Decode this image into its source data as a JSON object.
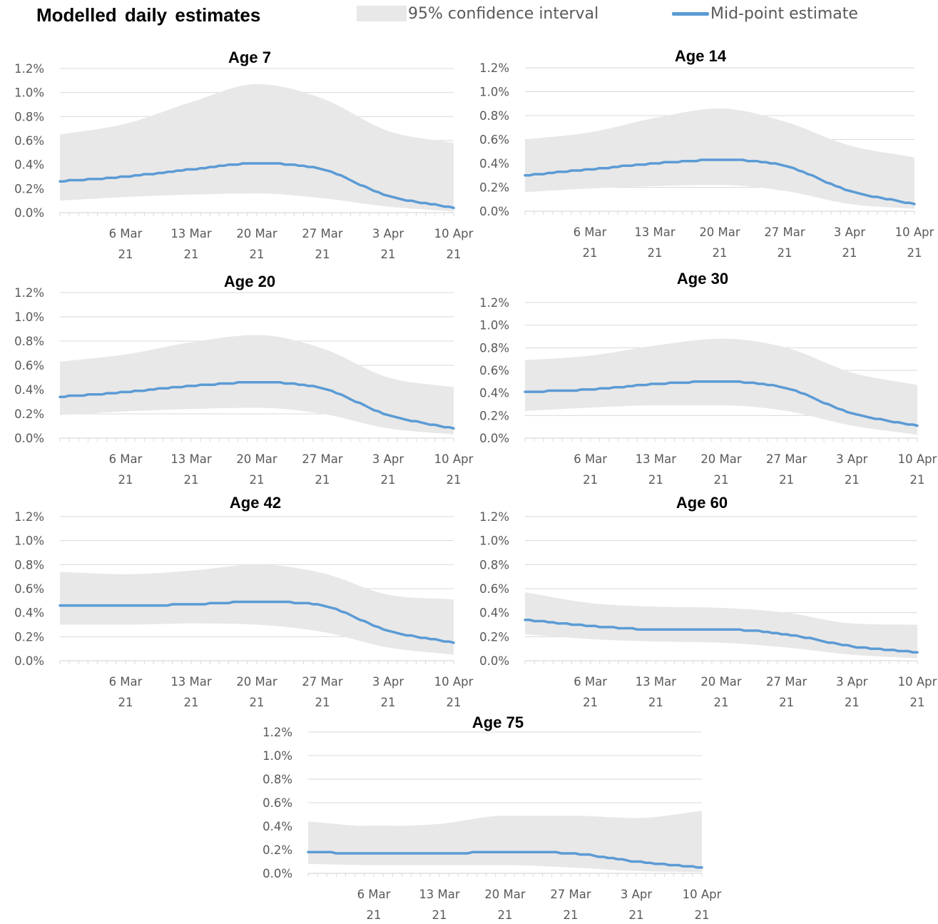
{
  "page": {
    "title": "Modelled daily estimates",
    "legend": {
      "band_label": "95% confidence interval",
      "line_label": "Mid-point estimate"
    }
  },
  "colors": {
    "band": "#e8e8e8",
    "line": "#5b9bd5",
    "grid": "#d9d9d9",
    "axis_text": "#595959",
    "title_text": "#000000"
  },
  "chart_data": [
    {
      "type": "area",
      "title": "Age 7",
      "x_unit": "day (0 = 28 Feb 2021)",
      "x": [
        0,
        7,
        14,
        21,
        28,
        35,
        42
      ],
      "x_tick_labels": [
        "6 Mar 21",
        "13 Mar 21",
        "20 Mar 21",
        "27 Mar 21",
        "3 Apr 21",
        "10 Apr 21"
      ],
      "y_tick_labels": [
        "0.0%",
        "0.2%",
        "0.4%",
        "0.6%",
        "0.8%",
        "1.0%",
        "1.2%"
      ],
      "ylim": [
        0,
        1.2
      ],
      "grid": true,
      "series": [
        {
          "name": "Mid-point estimate",
          "values": [
            0.26,
            0.3,
            0.36,
            0.41,
            0.36,
            0.14,
            0.04
          ]
        },
        {
          "name": "95% confidence interval upper",
          "values": [
            0.65,
            0.74,
            0.92,
            1.07,
            0.95,
            0.68,
            0.58
          ]
        },
        {
          "name": "95% confidence interval lower",
          "values": [
            0.1,
            0.13,
            0.15,
            0.16,
            0.12,
            0.05,
            0.01
          ]
        }
      ]
    },
    {
      "type": "area",
      "title": "Age 14",
      "x_unit": "day (0 = 28 Feb 2021)",
      "x": [
        0,
        7,
        14,
        21,
        28,
        35,
        42
      ],
      "x_tick_labels": [
        "6 Mar 21",
        "13 Mar 21",
        "20 Mar 21",
        "27 Mar 21",
        "3 Apr 21",
        "10 Apr 21"
      ],
      "y_tick_labels": [
        "0.0%",
        "0.2%",
        "0.4%",
        "0.6%",
        "0.8%",
        "1.0%",
        "1.2%"
      ],
      "ylim": [
        0,
        1.2
      ],
      "grid": true,
      "series": [
        {
          "name": "Mid-point estimate",
          "values": [
            0.3,
            0.35,
            0.4,
            0.43,
            0.38,
            0.17,
            0.06
          ]
        },
        {
          "name": "95% confidence interval upper",
          "values": [
            0.6,
            0.66,
            0.78,
            0.86,
            0.75,
            0.55,
            0.45
          ]
        },
        {
          "name": "95% confidence interval lower",
          "values": [
            0.16,
            0.19,
            0.21,
            0.22,
            0.17,
            0.06,
            0.02
          ]
        }
      ]
    },
    {
      "type": "area",
      "title": "Age 20",
      "x_unit": "day (0 = 28 Feb 2021)",
      "x": [
        0,
        7,
        14,
        21,
        28,
        35,
        42
      ],
      "x_tick_labels": [
        "6 Mar 21",
        "13 Mar 21",
        "20 Mar 21",
        "27 Mar 21",
        "3 Apr 21",
        "10 Apr 21"
      ],
      "y_tick_labels": [
        "0.0%",
        "0.2%",
        "0.4%",
        "0.6%",
        "0.8%",
        "1.0%",
        "1.2%"
      ],
      "ylim": [
        0,
        1.2
      ],
      "grid": true,
      "series": [
        {
          "name": "Mid-point estimate",
          "values": [
            0.34,
            0.38,
            0.43,
            0.46,
            0.41,
            0.19,
            0.08
          ]
        },
        {
          "name": "95% confidence interval upper",
          "values": [
            0.63,
            0.69,
            0.79,
            0.85,
            0.74,
            0.5,
            0.42
          ]
        },
        {
          "name": "95% confidence interval lower",
          "values": [
            0.19,
            0.22,
            0.24,
            0.25,
            0.2,
            0.08,
            0.03
          ]
        }
      ]
    },
    {
      "type": "area",
      "title": "Age 30",
      "x_unit": "day (0 = 28 Feb 2021)",
      "x": [
        0,
        7,
        14,
        21,
        28,
        35,
        42
      ],
      "x_tick_labels": [
        "6 Mar 21",
        "13 Mar 21",
        "20 Mar 21",
        "27 Mar 21",
        "3 Apr 21",
        "10 Apr 21"
      ],
      "y_tick_labels": [
        "0.0%",
        "0.2%",
        "0.4%",
        "0.6%",
        "0.8%",
        "1.0%",
        "1.2%"
      ],
      "ylim": [
        0,
        1.2
      ],
      "grid": true,
      "series": [
        {
          "name": "Mid-point estimate",
          "values": [
            0.41,
            0.43,
            0.48,
            0.5,
            0.44,
            0.22,
            0.11
          ]
        },
        {
          "name": "95% confidence interval upper",
          "values": [
            0.69,
            0.73,
            0.82,
            0.88,
            0.8,
            0.58,
            0.47
          ]
        },
        {
          "name": "95% confidence interval lower",
          "values": [
            0.24,
            0.27,
            0.29,
            0.29,
            0.24,
            0.11,
            0.03
          ]
        }
      ]
    },
    {
      "type": "area",
      "title": "Age 42",
      "x_unit": "day (0 = 28 Feb 2021)",
      "x": [
        0,
        7,
        14,
        21,
        28,
        35,
        42
      ],
      "x_tick_labels": [
        "6 Mar 21",
        "13 Mar 21",
        "20 Mar 21",
        "27 Mar 21",
        "3 Apr 21",
        "10 Apr 21"
      ],
      "y_tick_labels": [
        "0.0%",
        "0.2%",
        "0.4%",
        "0.6%",
        "0.8%",
        "1.0%",
        "1.2%"
      ],
      "ylim": [
        0,
        1.2
      ],
      "grid": true,
      "series": [
        {
          "name": "Mid-point estimate",
          "values": [
            0.46,
            0.46,
            0.47,
            0.49,
            0.46,
            0.25,
            0.15
          ]
        },
        {
          "name": "95% confidence interval upper",
          "values": [
            0.74,
            0.72,
            0.75,
            0.8,
            0.73,
            0.55,
            0.51
          ]
        },
        {
          "name": "95% confidence interval lower",
          "values": [
            0.3,
            0.3,
            0.31,
            0.3,
            0.24,
            0.11,
            0.05
          ]
        }
      ]
    },
    {
      "type": "area",
      "title": "Age 60",
      "x_unit": "day (0 = 28 Feb 2021)",
      "x": [
        0,
        7,
        14,
        21,
        28,
        35,
        42
      ],
      "x_tick_labels": [
        "6 Mar 21",
        "13 Mar 21",
        "20 Mar 21",
        "27 Mar 21",
        "3 Apr 21",
        "10 Apr 21"
      ],
      "y_tick_labels": [
        "0.0%",
        "0.2%",
        "0.4%",
        "0.6%",
        "0.8%",
        "1.0%",
        "1.2%"
      ],
      "ylim": [
        0,
        1.2
      ],
      "grid": true,
      "series": [
        {
          "name": "Mid-point estimate",
          "values": [
            0.34,
            0.29,
            0.26,
            0.26,
            0.22,
            0.12,
            0.07
          ]
        },
        {
          "name": "95% confidence interval upper",
          "values": [
            0.57,
            0.48,
            0.45,
            0.44,
            0.4,
            0.31,
            0.3
          ]
        },
        {
          "name": "95% confidence interval lower",
          "values": [
            0.22,
            0.18,
            0.16,
            0.15,
            0.11,
            0.05,
            0.02
          ]
        }
      ]
    },
    {
      "type": "area",
      "title": "Age 75",
      "x_unit": "day (0 = 28 Feb 2021)",
      "x": [
        0,
        7,
        14,
        21,
        28,
        35,
        42
      ],
      "x_tick_labels": [
        "6 Mar 21",
        "13 Mar 21",
        "20 Mar 21",
        "27 Mar 21",
        "3 Apr 21",
        "10 Apr 21"
      ],
      "y_tick_labels": [
        "0.0%",
        "0.2%",
        "0.4%",
        "0.6%",
        "0.8%",
        "1.0%",
        "1.2%"
      ],
      "ylim": [
        0,
        1.2
      ],
      "grid": true,
      "series": [
        {
          "name": "Mid-point estimate",
          "values": [
            0.18,
            0.17,
            0.17,
            0.18,
            0.17,
            0.1,
            0.05
          ]
        },
        {
          "name": "95% confidence interval upper",
          "values": [
            0.44,
            0.4,
            0.42,
            0.49,
            0.49,
            0.47,
            0.53
          ]
        },
        {
          "name": "95% confidence interval lower",
          "values": [
            0.08,
            0.07,
            0.07,
            0.07,
            0.05,
            0.02,
            0.01
          ]
        }
      ]
    }
  ]
}
